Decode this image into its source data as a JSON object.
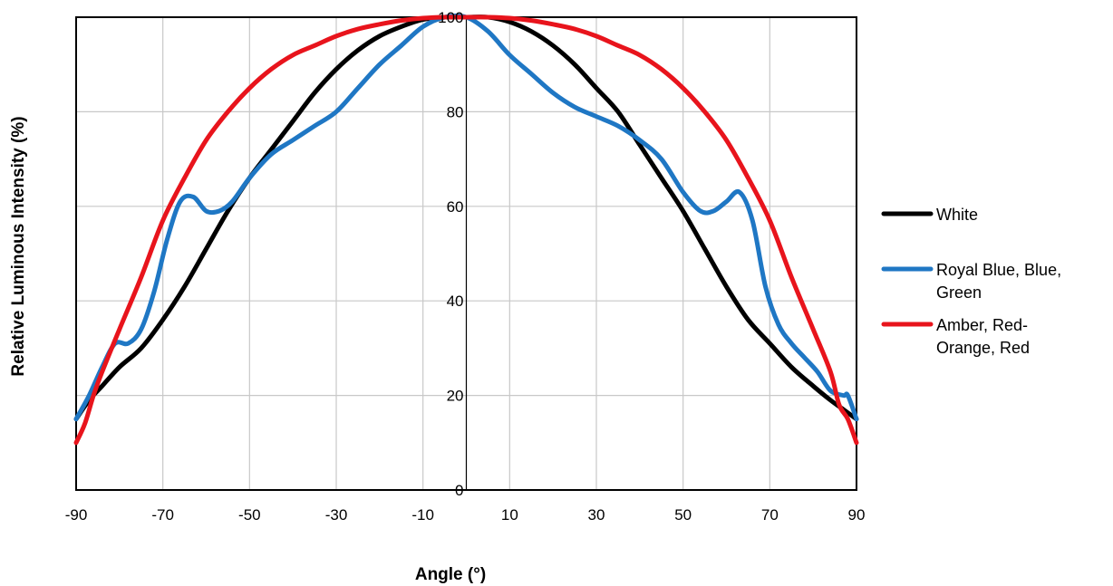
{
  "chart_data": {
    "type": "line",
    "xlabel": "Angle (°)",
    "ylabel": "Relative Luminous Intensity (%)",
    "xlim": [
      -90,
      90
    ],
    "ylim": [
      0,
      100
    ],
    "x_ticks": [
      -90,
      -70,
      -50,
      -30,
      -10,
      10,
      30,
      50,
      70,
      90
    ],
    "y_ticks": [
      0,
      20,
      40,
      60,
      80,
      100
    ],
    "grid": true,
    "legend_position": "right",
    "series": [
      {
        "name": "White",
        "name_lines": [
          "White"
        ],
        "color": "#000000",
        "x": [
          -90,
          -87,
          -84,
          -80,
          -75,
          -70,
          -65,
          -60,
          -55,
          -50,
          -45,
          -40,
          -35,
          -30,
          -25,
          -20,
          -15,
          -10,
          -5,
          0,
          5,
          10,
          15,
          20,
          25,
          30,
          35,
          40,
          45,
          50,
          55,
          60,
          65,
          70,
          75,
          80,
          84,
          87,
          90
        ],
        "y": [
          15,
          19,
          22,
          26,
          30,
          36,
          43,
          51,
          59,
          66,
          72,
          78,
          84,
          89,
          93,
          96,
          98,
          99.5,
          100,
          100,
          100,
          99,
          97,
          94,
          90,
          85,
          80,
          73,
          66,
          59,
          51,
          43,
          36,
          31,
          26,
          22,
          19,
          17,
          15
        ]
      },
      {
        "name": "Royal Blue, Blue, Green",
        "name_lines": [
          "Royal Blue, Blue,",
          "Green"
        ],
        "color": "#1F77C4",
        "x": [
          -90,
          -87,
          -84,
          -81,
          -78,
          -75,
          -72,
          -69,
          -66,
          -63,
          -60,
          -57,
          -54,
          -50,
          -45,
          -40,
          -35,
          -30,
          -25,
          -20,
          -15,
          -10,
          -5,
          0,
          5,
          10,
          15,
          20,
          25,
          30,
          35,
          40,
          45,
          50,
          54,
          57,
          60,
          63,
          66,
          69,
          72,
          75,
          78,
          81,
          84,
          87,
          88,
          90
        ],
        "y": [
          15,
          20,
          26,
          31,
          31,
          34,
          42,
          53,
          61,
          62,
          59,
          59,
          61,
          66,
          71,
          74,
          77,
          80,
          85,
          90,
          94,
          98,
          100,
          100,
          97,
          92,
          88,
          84,
          81,
          79,
          77,
          74,
          70,
          63,
          59,
          59,
          61,
          63,
          57,
          43,
          35,
          31,
          28,
          25,
          21,
          20,
          20,
          15
        ]
      },
      {
        "name": "Amber, Red-Orange, Red",
        "name_lines": [
          "Amber, Red-",
          "Orange, Red"
        ],
        "color": "#E8141C",
        "x": [
          -90,
          -88,
          -86,
          -84,
          -80,
          -75,
          -70,
          -65,
          -60,
          -55,
          -50,
          -45,
          -40,
          -35,
          -30,
          -25,
          -20,
          -15,
          -10,
          -5,
          0,
          5,
          10,
          15,
          20,
          25,
          30,
          35,
          40,
          45,
          50,
          55,
          60,
          65,
          70,
          75,
          80,
          84,
          86,
          88,
          90
        ],
        "y": [
          10,
          14,
          20,
          25,
          34,
          45,
          57,
          66,
          74,
          80,
          85,
          89,
          92,
          94,
          96,
          97.5,
          98.5,
          99.3,
          99.8,
          100,
          100,
          100,
          99.8,
          99.3,
          98.5,
          97.5,
          96,
          94,
          92,
          89,
          85,
          80,
          74,
          66,
          57,
          45,
          34,
          25,
          18,
          15,
          10
        ]
      }
    ]
  }
}
